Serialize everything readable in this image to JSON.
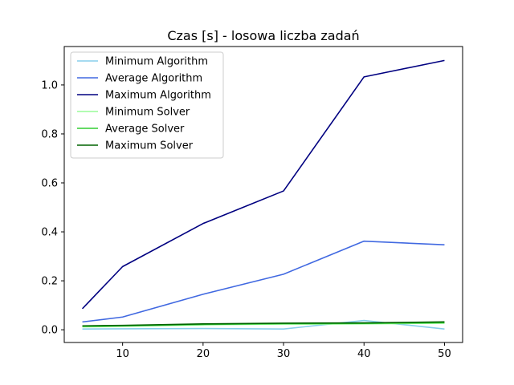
{
  "chart_data": {
    "type": "line",
    "title": "Czas [s] - losowa liczba zadań",
    "xlabel": "",
    "ylabel": "",
    "x": [
      5,
      10,
      20,
      30,
      40,
      50
    ],
    "xlim": [
      2.75,
      52.25
    ],
    "ylim": [
      -0.052,
      1.157
    ],
    "xticks": [
      10,
      20,
      30,
      40,
      50
    ],
    "yticks": [
      0.0,
      0.2,
      0.4,
      0.6,
      0.8,
      1.0
    ],
    "ytick_labels": [
      "0.0",
      "0.2",
      "0.4",
      "0.6",
      "0.8",
      "1.0"
    ],
    "grid": false,
    "legend_position": "top-left",
    "series": [
      {
        "name": "Minimum Algorithm",
        "color": "#87ceeb",
        "values": [
          0.003,
          0.004,
          0.005,
          0.003,
          0.038,
          0.003
        ]
      },
      {
        "name": "Average Algorithm",
        "color": "#4169e1",
        "values": [
          0.032,
          0.052,
          0.145,
          0.227,
          0.362,
          0.347
        ]
      },
      {
        "name": "Maximum Algorithm",
        "color": "#000080",
        "values": [
          0.086,
          0.258,
          0.434,
          0.567,
          1.033,
          1.1
        ]
      },
      {
        "name": "Minimum Solver",
        "color": "#98fb98",
        "values": [
          0.012,
          0.014,
          0.02,
          0.023,
          0.024,
          0.027
        ]
      },
      {
        "name": "Average Solver",
        "color": "#32cd32",
        "values": [
          0.014,
          0.016,
          0.022,
          0.025,
          0.026,
          0.029
        ]
      },
      {
        "name": "Maximum Solver",
        "color": "#006400",
        "values": [
          0.016,
          0.018,
          0.024,
          0.027,
          0.028,
          0.032
        ]
      }
    ]
  }
}
